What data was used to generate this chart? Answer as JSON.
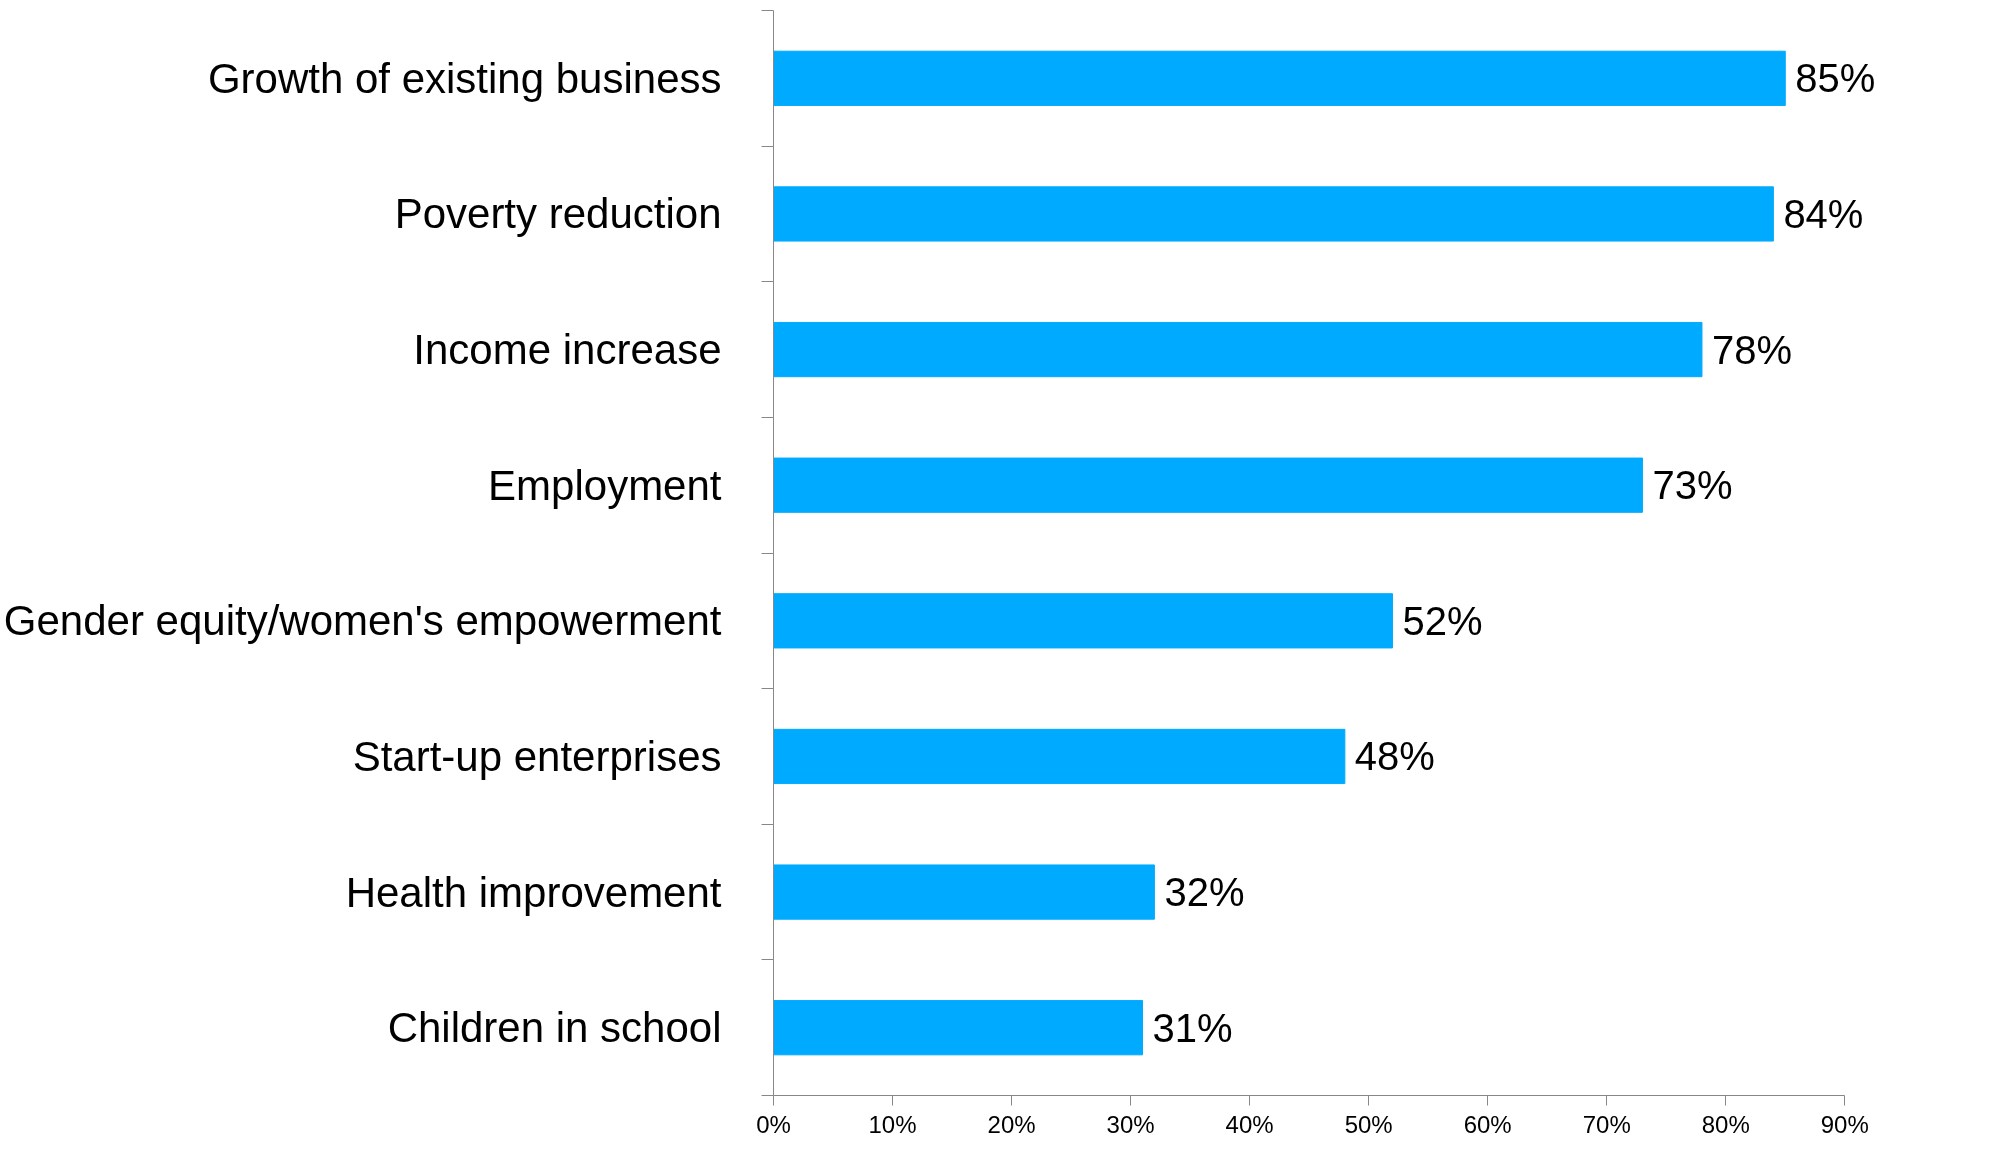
{
  "chart_data": {
    "type": "bar",
    "orientation": "horizontal",
    "categories": [
      "Growth of existing business",
      "Poverty reduction",
      "Income increase",
      "Employment",
      "Gender equity/women's empowerment",
      "Start-up enterprises",
      "Health improvement",
      "Children in school"
    ],
    "values": [
      85,
      84,
      78,
      73,
      52,
      48,
      32,
      31
    ],
    "value_labels": [
      "85%",
      "84%",
      "78%",
      "73%",
      "52%",
      "48%",
      "32%",
      "31%"
    ],
    "color": "#00aaff",
    "xlim": [
      0,
      90
    ],
    "xticks": [
      {
        "value": 0,
        "label": "0%"
      },
      {
        "value": 10,
        "label": "10%"
      },
      {
        "value": 20,
        "label": "20%"
      },
      {
        "value": 30,
        "label": "30%"
      },
      {
        "value": 40,
        "label": "40%"
      },
      {
        "value": 50,
        "label": "50%"
      },
      {
        "value": 60,
        "label": "60%"
      },
      {
        "value": 70,
        "label": "70%"
      },
      {
        "value": 80,
        "label": "80%"
      },
      {
        "value": 90,
        "label": "90%"
      }
    ],
    "grid": false
  }
}
